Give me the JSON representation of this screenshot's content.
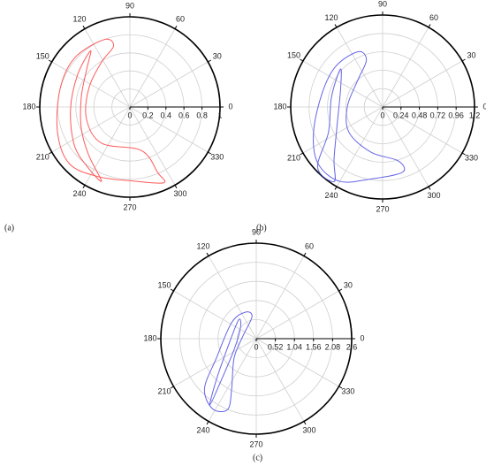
{
  "chart_data": [
    {
      "type": "polar",
      "label": "(a)",
      "rlim": [
        0,
        1
      ],
      "rticks": [
        0,
        0.2,
        0.4,
        0.6,
        0.8,
        1
      ],
      "thetaticks": [
        0,
        30,
        60,
        90,
        120,
        150,
        180,
        210,
        240,
        270,
        300,
        330
      ],
      "grid": true,
      "series": [
        {
          "color": "#ff5a5a",
          "theta": [
            111,
            105,
            122,
            156,
            196,
            232,
            285,
            293,
            294,
            272,
            245,
            223,
            199,
            165,
            138
          ],
          "r": [
            0.8,
            0.7,
            0.59,
            0.5,
            0.5,
            0.51,
            0.5,
            0.79,
            0.92,
            0.82,
            0.85,
            0.92,
            0.85,
            0.8,
            0.82
          ]
        },
        {
          "color": "#ff5a5a",
          "theta": [
            125,
            149,
            183,
            215,
            236,
            249,
            229,
            204,
            169,
            140
          ],
          "r": [
            0.76,
            0.68,
            0.66,
            0.75,
            0.82,
            0.88,
            0.7,
            0.59,
            0.55,
            0.63
          ]
        }
      ]
    },
    {
      "type": "polar",
      "label": "(b)",
      "rlim": [
        0,
        1.2
      ],
      "rticks": [
        0,
        0.24,
        0.48,
        0.72,
        0.96,
        1.2
      ],
      "thetaticks": [
        0,
        30,
        60,
        90,
        120,
        150,
        180,
        210,
        240,
        270,
        300,
        330
      ],
      "grid": true,
      "series": [
        {
          "color": "#6464e6",
          "theta": [
            114,
            109,
            132,
            179,
            217,
            256,
            286,
            287,
            261,
            240,
            221,
            200,
            167,
            139
          ],
          "r": [
            0.79,
            0.65,
            0.48,
            0.46,
            0.55,
            0.61,
            0.73,
            0.89,
            0.95,
            1.12,
            1.12,
            0.96,
            0.81,
            0.81
          ]
        },
        {
          "color": "#6464e6",
          "theta": [
            138,
            169,
            205,
            223,
            237,
            227,
            200,
            156
          ],
          "r": [
            0.74,
            0.68,
            0.78,
            1.16,
            1.16,
            0.93,
            0.63,
            0.6
          ]
        }
      ]
    },
    {
      "type": "polar",
      "label": "(c)",
      "rlim": [
        0,
        2.6
      ],
      "rticks": [
        0,
        0.52,
        1.04,
        1.56,
        2.08,
        2.6
      ],
      "thetaticks": [
        0,
        30,
        60,
        90,
        120,
        150,
        180,
        210,
        240,
        270,
        300,
        330
      ],
      "grid": true,
      "series": [
        {
          "color": "#6464e6",
          "theta": [
            112,
            101,
            169,
            221,
            244,
            248,
            238,
            224,
            206,
            147
          ],
          "r": [
            0.78,
            0.61,
            0.37,
            0.8,
            1.53,
            2.08,
            2.25,
            1.96,
            1.21,
            0.8
          ]
        },
        {
          "color": "#6464e6",
          "theta": [
            134,
            200,
            226,
            235,
            230,
            206,
            144
          ],
          "r": [
            0.7,
            0.85,
            1.57,
            2.2,
            1.49,
            0.67,
            0.53
          ]
        }
      ]
    }
  ]
}
